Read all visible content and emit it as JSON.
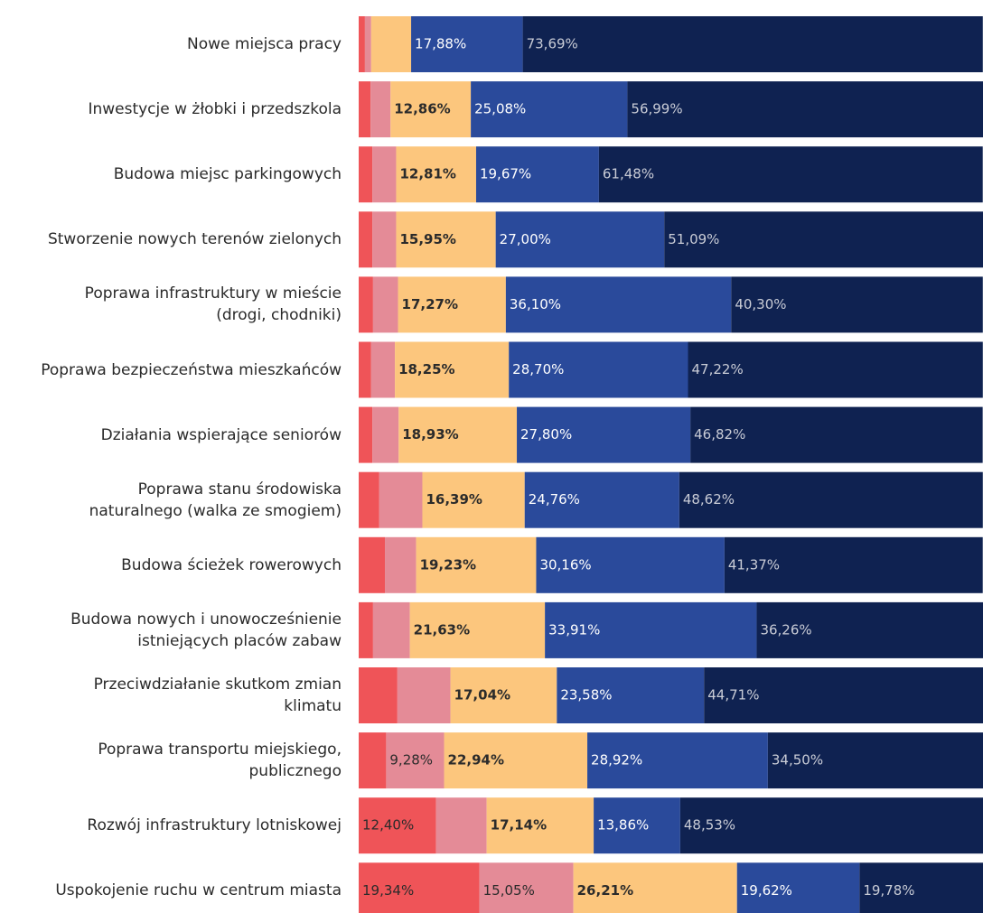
{
  "chart_data": {
    "type": "bar",
    "orientation": "horizontal",
    "stacked": true,
    "xlim": [
      0,
      100
    ],
    "categories": [
      "Nowe miejsca pracy",
      "Inwestycje w żłobki i przedszkola",
      "Budowa miejsc parkingowych",
      "Stworzenie nowych terenów zielonych",
      "Poprawa infrastruktury w mieście\n(drogi, chodniki)",
      "Poprawa bezpieczeństwa mieszkańców",
      "Działania wspierające seniorów",
      "Poprawa stanu środowiska\nnaturalnego (walka ze smogiem)",
      "Budowa ścieżek rowerowych",
      "Budowa nowych i unowocześnienie\nistniejących placów zabaw",
      "Przeciwdziałanie skutkom zmian\nklimatu",
      "Poprawa transportu miejskiego,\npublicznego",
      "Rozwój infrastruktury lotniskowej",
      "Uspokojenie ruchu w centrum miasta"
    ],
    "series": [
      {
        "color": "#ef5458",
        "text_color": "#2b2b2b",
        "bold": false,
        "values": [
          1.0,
          1.9,
          2.2,
          2.2,
          2.3,
          2.0,
          2.2,
          3.3,
          4.2,
          2.3,
          6.2,
          4.4,
          12.4,
          19.34
        ],
        "value_labels": [
          null,
          null,
          null,
          null,
          null,
          null,
          null,
          null,
          null,
          null,
          null,
          null,
          "12,40%",
          "19,34%"
        ]
      },
      {
        "color": "#e48b97",
        "text_color": "#2b2b2b",
        "bold": false,
        "values": [
          1.0,
          3.2,
          3.8,
          3.8,
          4.0,
          3.8,
          4.2,
          6.9,
          5.0,
          5.9,
          8.5,
          9.28,
          8.1,
          15.05
        ],
        "value_labels": [
          null,
          null,
          null,
          null,
          null,
          null,
          null,
          null,
          null,
          null,
          null,
          "9,28%",
          null,
          "15,05%"
        ]
      },
      {
        "color": "#fcc67d",
        "text_color": "#2b2b2b",
        "bold": true,
        "values": [
          6.4,
          12.86,
          12.81,
          15.95,
          17.27,
          18.25,
          18.93,
          16.39,
          19.23,
          21.63,
          17.04,
          22.94,
          17.14,
          26.21
        ],
        "value_labels": [
          null,
          "12,86%",
          "12,81%",
          "15,95%",
          "17,27%",
          "18,25%",
          "18,93%",
          "16,39%",
          "19,23%",
          "21,63%",
          "17,04%",
          "22,94%",
          "17,14%",
          "26,21%"
        ]
      },
      {
        "color": "#2a4a9b",
        "text_color": "#ffffff",
        "bold": false,
        "values": [
          17.88,
          25.08,
          19.67,
          27.0,
          36.1,
          28.7,
          27.8,
          24.76,
          30.16,
          33.91,
          23.58,
          28.92,
          13.86,
          19.62
        ],
        "value_labels": [
          "17,88%",
          "25,08%",
          "19,67%",
          "27,00%",
          "36,10%",
          "28,70%",
          "27,80%",
          "24,76%",
          "30,16%",
          "33,91%",
          "23,58%",
          "28,92%",
          "13,86%",
          "19,62%"
        ]
      },
      {
        "color": "#0f2251",
        "text_color": "#c9ccd6",
        "bold": false,
        "values": [
          73.69,
          56.99,
          61.48,
          51.09,
          40.3,
          47.22,
          46.82,
          48.62,
          41.37,
          36.26,
          44.71,
          34.5,
          48.53,
          19.78
        ],
        "value_labels": [
          "73,69%",
          "56,99%",
          "61,48%",
          "51,09%",
          "40,30%",
          "47,22%",
          "46,82%",
          "48,62%",
          "41,37%",
          "36,26%",
          "44,71%",
          "34,50%",
          "48,53%",
          "19,78%"
        ]
      }
    ]
  }
}
